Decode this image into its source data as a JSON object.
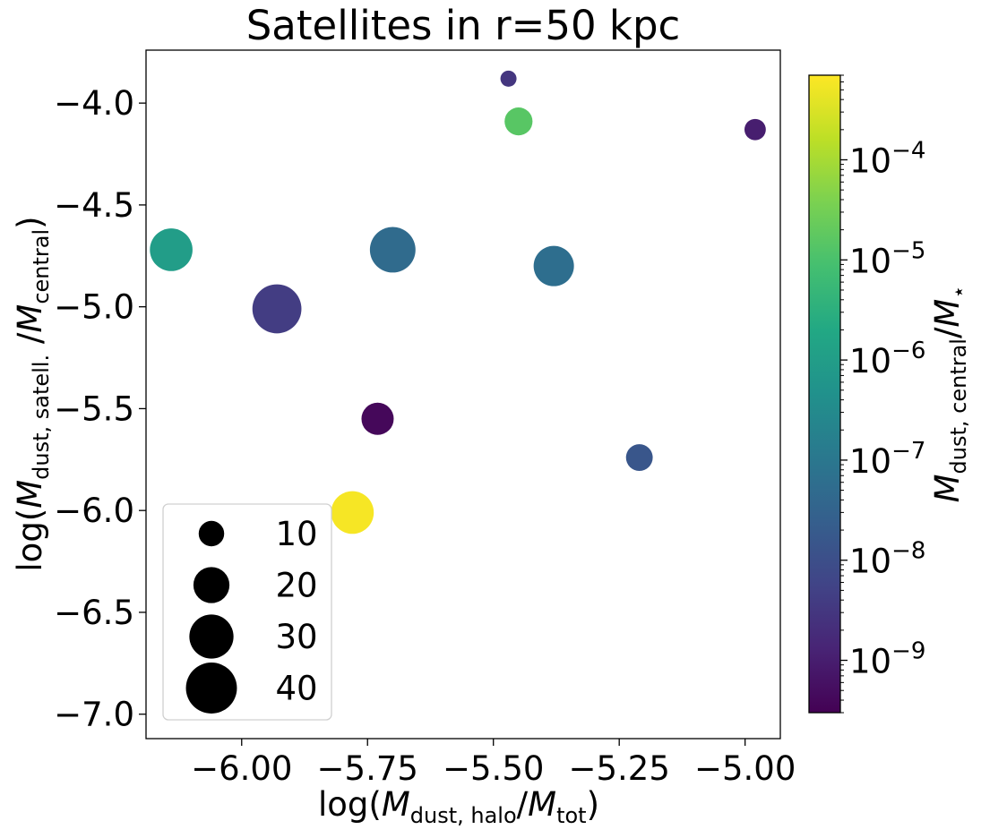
{
  "chart_data": {
    "type": "scatter",
    "title": "Satellites in r=50 kpc",
    "xlabel": {
      "prefix": "log(",
      "var": "M",
      "sub": "dust, halo",
      "sep": "/",
      "var2": "M",
      "sub2": "tot",
      "suffix": ")"
    },
    "ylabel": {
      "prefix": "log(",
      "var": "M",
      "sub": "dust, satell.",
      "sep": " /",
      "var2": "M",
      "sub2": "central",
      "suffix": ")"
    },
    "xlim": [
      -6.19,
      -4.93
    ],
    "ylim": [
      -7.12,
      -3.74
    ],
    "xticks": [
      -6.0,
      -5.75,
      -5.5,
      -5.25,
      -5.0
    ],
    "xtick_labels": [
      "−6.00",
      "−5.75",
      "−5.50",
      "−5.25",
      "−5.00"
    ],
    "yticks": [
      -4.0,
      -4.5,
      -5.0,
      -5.5,
      -6.0,
      -6.5,
      -7.0
    ],
    "ytick_labels": [
      "−4.0",
      "−4.5",
      "−5.0",
      "−5.5",
      "−6.0",
      "−6.5",
      "−7.0"
    ],
    "points": [
      {
        "x": -5.47,
        "y": -3.88,
        "size": 4,
        "color_value": 3e-09
      },
      {
        "x": -5.45,
        "y": -4.09,
        "size": 12,
        "color_value": 1.5e-05
      },
      {
        "x": -4.98,
        "y": -4.13,
        "size": 7,
        "color_value": 1e-09
      },
      {
        "x": -6.14,
        "y": -4.72,
        "size": 28,
        "color_value": 1e-06
      },
      {
        "x": -5.7,
        "y": -4.72,
        "size": 32,
        "color_value": 5e-08
      },
      {
        "x": -5.38,
        "y": -4.8,
        "size": 25,
        "color_value": 6e-08
      },
      {
        "x": -5.93,
        "y": -5.01,
        "size": 37,
        "color_value": 4e-09
      },
      {
        "x": -5.73,
        "y": -5.55,
        "size": 16,
        "color_value": 4e-10
      },
      {
        "x": -5.21,
        "y": -5.74,
        "size": 11,
        "color_value": 1.5e-08
      },
      {
        "x": -5.78,
        "y": -6.01,
        "size": 28,
        "color_value": 0.0006
      }
    ],
    "colorbar": {
      "scale": "log",
      "label": {
        "var": "M",
        "sub": "dust, central",
        "sep": "/",
        "var2": "M",
        "sub2": "⋆"
      },
      "range": [
        3e-10,
        0.0007
      ],
      "ticks": [
        {
          "value": 1e-09,
          "label": "10",
          "exp": "−9"
        },
        {
          "value": 1e-08,
          "label": "10",
          "exp": "−8"
        },
        {
          "value": 1e-07,
          "label": "10",
          "exp": "−7"
        },
        {
          "value": 1e-06,
          "label": "10",
          "exp": "−6"
        },
        {
          "value": 1e-05,
          "label": "10",
          "exp": "−5"
        },
        {
          "value": 0.0001,
          "label": "10",
          "exp": "−4"
        }
      ],
      "colormap": "viridis"
    },
    "legend": {
      "placement": "lower-left",
      "sizes": [
        "10",
        "20",
        "30",
        "40"
      ]
    },
    "grid": false
  }
}
